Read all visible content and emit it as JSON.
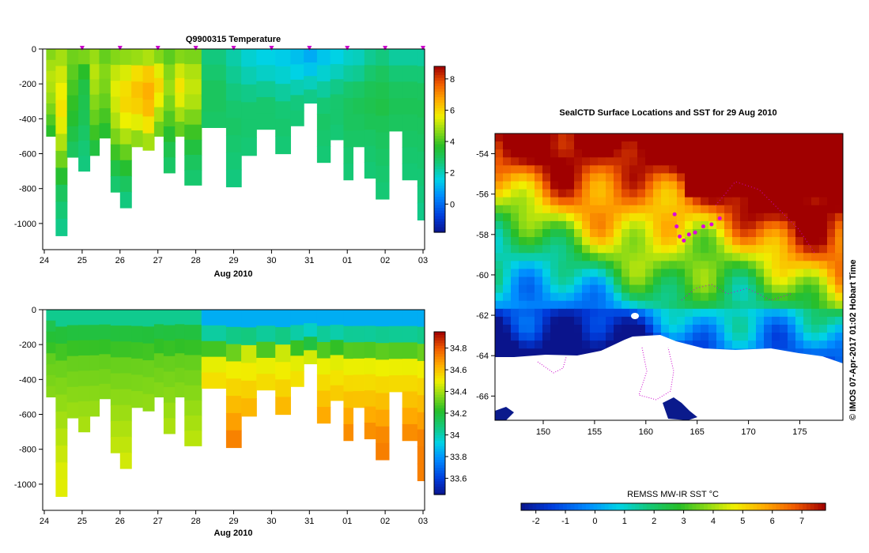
{
  "chart_data": [
    {
      "type": "heatmap",
      "title": "Q9900315  Temperature",
      "xlabel": "Aug 2010",
      "ylabel": "",
      "x_ticks": [
        "24",
        "25",
        "26",
        "27",
        "28",
        "29",
        "30",
        "31",
        "01",
        "02",
        "03"
      ],
      "ylim": [
        -1150,
        0
      ],
      "y_ticks": [
        0,
        -200,
        -400,
        -600,
        -800,
        -1000
      ],
      "colorbar": {
        "range": [
          -1.8,
          8.8
        ],
        "ticks": [
          8,
          6,
          4,
          2,
          0
        ]
      },
      "profile_marker_color": "#cc00cc",
      "profiles": [
        {
          "t": 0.05,
          "max_depth": 500,
          "values": [
            4.6,
            4.9,
            5.1,
            5.0,
            4.8,
            4.5,
            4.1,
            3.7
          ]
        },
        {
          "t": 0.3,
          "max_depth": 1070,
          "values": [
            4.9,
            5.3,
            5.6,
            5.8,
            5.5,
            5.0,
            4.4,
            3.6,
            3.0,
            2.7,
            2.5
          ]
        },
        {
          "t": 0.6,
          "max_depth": 620,
          "values": [
            4.4,
            4.2,
            4.0,
            3.8,
            3.6,
            3.3,
            3.0
          ]
        },
        {
          "t": 0.9,
          "max_depth": 700,
          "values": [
            4.5,
            3.7,
            3.3,
            3.2,
            3.1,
            2.9,
            2.7,
            2.6
          ]
        },
        {
          "t": 1.2,
          "max_depth": 610,
          "values": [
            4.8,
            5.1,
            4.9,
            4.6,
            4.3,
            3.9,
            3.4
          ]
        },
        {
          "t": 1.45,
          "max_depth": 510,
          "values": [
            4.3,
            4.6,
            4.5,
            4.3,
            4.0,
            3.6
          ]
        },
        {
          "t": 1.75,
          "max_depth": 820,
          "values": [
            4.6,
            5.2,
            5.5,
            5.3,
            5.0,
            4.5,
            3.9,
            3.3,
            2.8
          ]
        },
        {
          "t": 2.0,
          "max_depth": 910,
          "values": [
            4.7,
            5.4,
            5.9,
            6.0,
            5.6,
            5.0,
            4.3,
            3.6,
            3.0,
            2.6
          ]
        },
        {
          "t": 2.3,
          "max_depth": 560,
          "values": [
            4.8,
            5.9,
            6.3,
            6.1,
            5.5,
            4.7
          ]
        },
        {
          "t": 2.6,
          "max_depth": 580,
          "values": [
            5.0,
            6.2,
            6.6,
            6.4,
            5.8,
            4.9
          ]
        },
        {
          "t": 2.9,
          "max_depth": 500,
          "values": [
            4.6,
            5.5,
            6.0,
            5.6,
            5.0,
            4.4
          ]
        },
        {
          "t": 3.15,
          "max_depth": 710,
          "values": [
            4.2,
            4.6,
            4.8,
            4.5,
            4.1,
            3.6,
            3.2,
            2.9
          ]
        },
        {
          "t": 3.45,
          "max_depth": 500,
          "values": [
            4.6,
            5.3,
            5.8,
            5.5,
            4.9,
            4.3
          ]
        },
        {
          "t": 3.7,
          "max_depth": 780,
          "values": [
            4.5,
            5.0,
            5.2,
            5.0,
            4.5,
            3.9,
            3.4,
            3.0,
            2.8
          ]
        },
        {
          "t": 4.15,
          "max_depth": 450,
          "values": [
            2.6,
            2.8,
            3.0,
            3.0,
            2.9
          ]
        },
        {
          "t": 4.8,
          "max_depth": 790,
          "values": [
            2.2,
            2.4,
            2.6,
            2.8,
            2.9,
            2.8,
            2.7,
            2.6
          ]
        },
        {
          "t": 5.2,
          "max_depth": 610,
          "values": [
            1.8,
            2.1,
            2.5,
            2.8,
            2.8,
            2.7
          ]
        },
        {
          "t": 5.6,
          "max_depth": 460,
          "values": [
            1.6,
            1.9,
            2.4,
            2.8,
            2.8
          ]
        },
        {
          "t": 6.1,
          "max_depth": 600,
          "values": [
            1.5,
            1.8,
            2.3,
            2.7,
            2.8,
            2.7
          ]
        },
        {
          "t": 6.5,
          "max_depth": 440,
          "values": [
            1.3,
            1.6,
            2.1,
            2.6,
            2.7
          ]
        },
        {
          "t": 6.85,
          "max_depth": 310,
          "values": [
            1.0,
            1.4,
            2.0,
            2.5
          ]
        },
        {
          "t": 7.2,
          "max_depth": 650,
          "values": [
            1.4,
            1.8,
            2.3,
            2.7,
            2.9,
            2.8,
            2.7
          ]
        },
        {
          "t": 7.55,
          "max_depth": 520,
          "values": [
            1.6,
            2.0,
            2.5,
            2.8,
            2.8,
            2.7
          ]
        },
        {
          "t": 7.9,
          "max_depth": 750,
          "values": [
            1.9,
            2.3,
            2.8,
            3.0,
            3.0,
            2.9,
            2.8,
            2.7
          ]
        },
        {
          "t": 8.15,
          "max_depth": 560,
          "values": [
            2.0,
            2.4,
            2.9,
            3.1,
            3.0,
            2.9
          ]
        },
        {
          "t": 8.45,
          "max_depth": 740,
          "values": [
            2.4,
            2.8,
            3.1,
            3.2,
            3.1,
            2.9,
            2.8,
            2.7
          ]
        },
        {
          "t": 8.75,
          "max_depth": 860,
          "values": [
            2.6,
            3.0,
            3.2,
            3.3,
            3.1,
            3.0,
            2.9,
            2.8,
            2.7
          ]
        },
        {
          "t": 9.1,
          "max_depth": 470,
          "values": [
            2.3,
            2.7,
            3.0,
            3.1,
            3.0
          ]
        },
        {
          "t": 9.45,
          "max_depth": 750,
          "values": [
            2.3,
            2.7,
            3.0,
            3.1,
            3.0,
            2.9,
            2.8,
            2.7
          ]
        },
        {
          "t": 9.85,
          "max_depth": 980,
          "values": [
            2.3,
            2.7,
            3.0,
            3.1,
            3.0,
            2.9,
            2.8,
            2.7,
            2.6,
            2.5
          ]
        }
      ]
    },
    {
      "type": "heatmap",
      "title": "",
      "xlabel": "Aug 2010",
      "ylabel": "",
      "x_ticks": [
        "24",
        "25",
        "26",
        "27",
        "28",
        "29",
        "30",
        "31",
        "01",
        "02",
        "03"
      ],
      "ylim": [
        -1150,
        0
      ],
      "y_ticks": [
        0,
        -200,
        -400,
        -600,
        -800,
        -1000
      ],
      "colorbar": {
        "range": [
          33.45,
          34.95
        ],
        "ticks": [
          34.8,
          34.6,
          34.4,
          34.2,
          34,
          33.8,
          33.6
        ]
      }
    },
    {
      "type": "heatmap",
      "title": "SealCTD Surface Locations and SST for 29 Aug 2010",
      "xlabel": "",
      "ylabel": "",
      "x_ticks": [
        150,
        155,
        160,
        165,
        170,
        175
      ],
      "y_ticks": [
        -54,
        -56,
        -58,
        -60,
        -62,
        -64,
        -66
      ],
      "xlim": [
        145.3,
        179.2
      ],
      "ylim": [
        -67.2,
        -53.0
      ],
      "colorbar": {
        "title": "REMSS MW-IR SST °C",
        "range": [
          -2.5,
          7.8
        ],
        "ticks": [
          "-2",
          "-1",
          "0",
          "1",
          "2",
          "3",
          "4",
          "5",
          "6",
          "7"
        ]
      },
      "seal_locations": [
        [
          162.8,
          -57.0
        ],
        [
          163.0,
          -57.6
        ],
        [
          163.3,
          -58.1
        ],
        [
          163.7,
          -58.3
        ],
        [
          164.2,
          -58.0
        ],
        [
          164.8,
          -57.9
        ],
        [
          165.6,
          -57.6
        ],
        [
          166.4,
          -57.5
        ],
        [
          167.2,
          -57.2
        ]
      ]
    }
  ],
  "credit": "©  IMOS 07-Apr-2017 01:02 Hobart Time"
}
